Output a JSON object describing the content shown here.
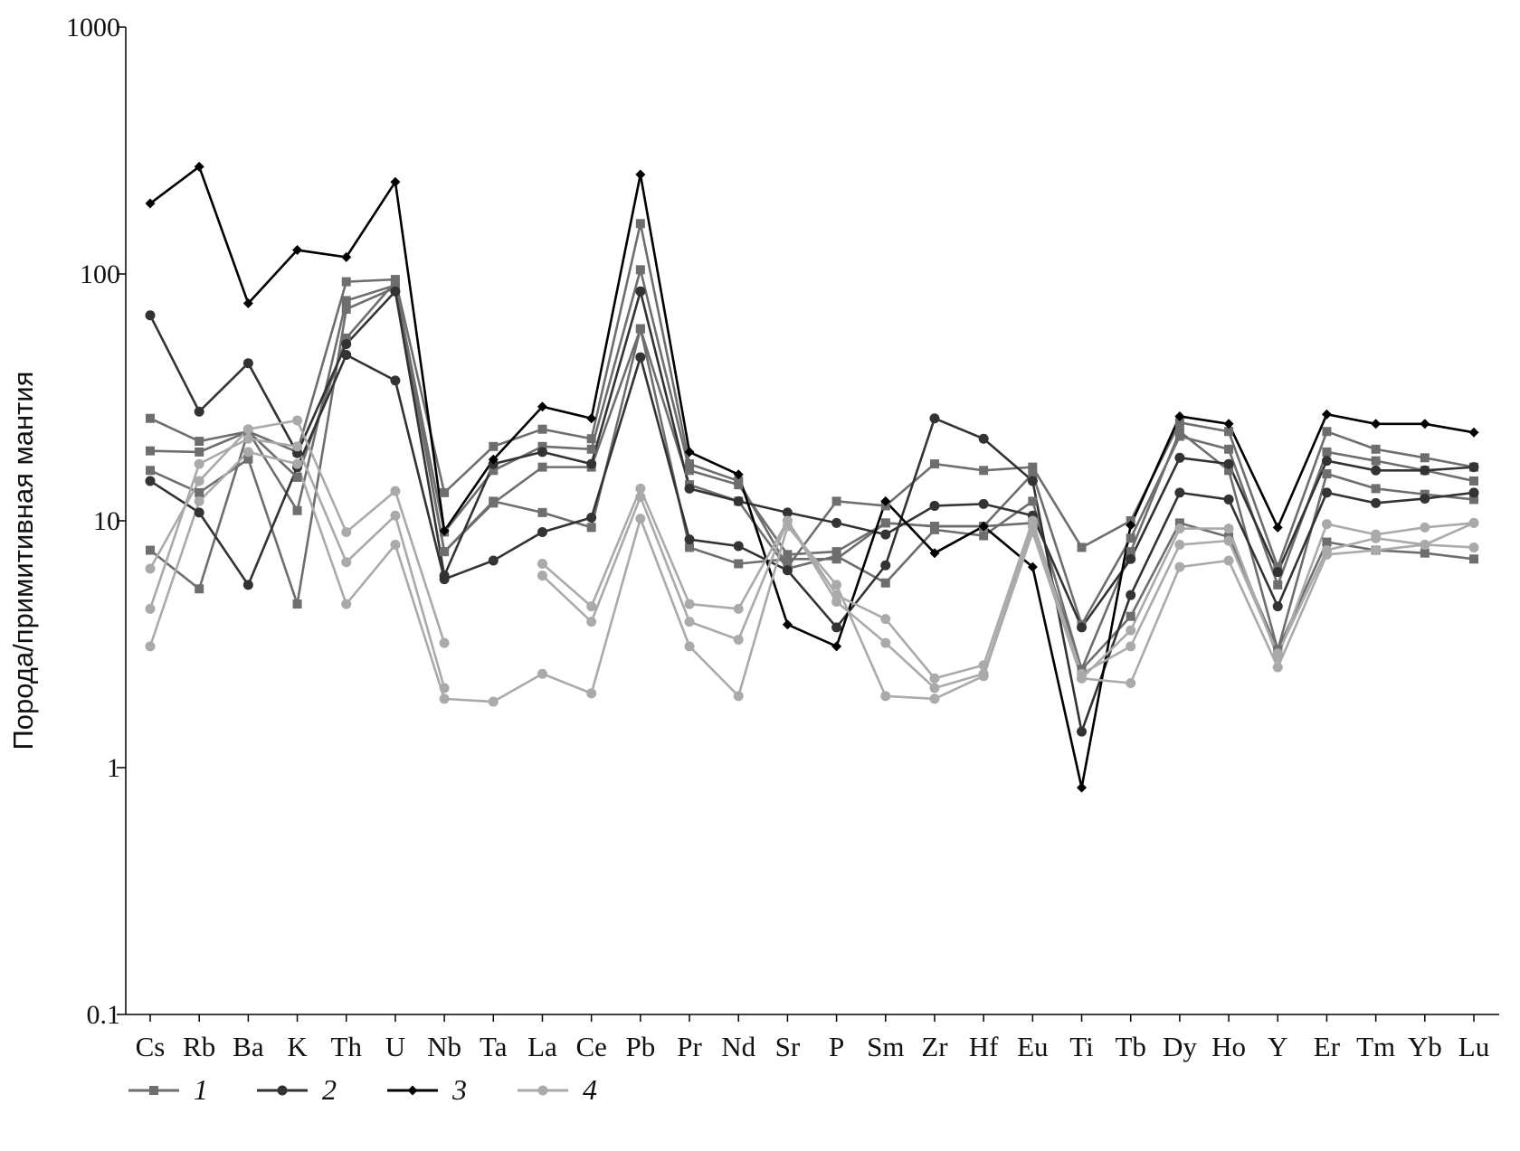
{
  "chart_data": {
    "type": "line",
    "y_label": "Порода/примитивная мантия",
    "log_scale": true,
    "categories": [
      "Cs",
      "Rb",
      "Ba",
      "K",
      "Th",
      "U",
      "Nb",
      "Ta",
      "La",
      "Ce",
      "Pb",
      "Pr",
      "Nd",
      "Sr",
      "P",
      "Sm",
      "Zr",
      "Hf",
      "Eu",
      "Ti",
      "Tb",
      "Dy",
      "Ho",
      "Y",
      "Er",
      "Tm",
      "Yb",
      "Lu"
    ],
    "ylim": [
      0.1,
      1000
    ],
    "yticks": [
      0.1,
      1,
      10,
      100,
      1000
    ],
    "series": [
      {
        "name": "1",
        "color": "#6e6e6e",
        "marker": "square",
        "lines": [
          [
            26,
            21,
            23,
            19,
            93,
            95,
            13,
            20,
            23.5,
            21.5,
            160,
            17,
            14.5,
            6.5,
            12,
            11.5,
            17,
            16,
            16.5,
            7.8,
            10,
            25,
            23,
            6.5,
            23,
            19.5,
            18,
            16.5
          ],
          [
            19.2,
            19,
            23,
            11,
            78,
            90,
            9,
            16,
            20,
            19.5,
            104,
            16,
            14,
            7.3,
            7.5,
            9.8,
            9.5,
            9.5,
            15.5,
            3.8,
            8.5,
            22,
            19.5,
            5.5,
            19,
            17.5,
            16,
            14.5
          ],
          [
            16,
            13,
            17.8,
            4.6,
            72,
            88,
            7.5,
            11.8,
            16.5,
            16.5,
            60,
            14,
            12,
            6.4,
            7.2,
            5.6,
            9.2,
            8.7,
            12,
            2.5,
            7.5,
            23,
            16,
            3,
            15.5,
            13.5,
            12.8,
            12.2
          ],
          [
            7.6,
            5.3,
            23,
            15,
            55,
            93,
            7.5,
            12,
            10.8,
            9.4,
            60,
            7.8,
            6.7,
            7,
            7,
            9.8,
            9.5,
            9.5,
            9.8,
            2.5,
            4.1,
            9.8,
            8.6,
            3,
            8.2,
            7.6,
            7.4,
            7
          ]
        ]
      },
      {
        "name": "2",
        "color": "#333333",
        "marker": "circle",
        "lines": [
          [
            68,
            27.7,
            43.5,
            18.8,
            52,
            85,
            6,
            17,
            19,
            17,
            85,
            13.5,
            12,
            10.8,
            9.8,
            8.8,
            11.5,
            11.7,
            10.5,
            3.7,
            7,
            18,
            17,
            6.2,
            17.5,
            16,
            16,
            16.5
          ],
          [
            14.5,
            10.8,
            5.5,
            16.5,
            47,
            37,
            5.8,
            6.9,
            9,
            10.3,
            46,
            8.4,
            7.9,
            6.3,
            3.7,
            6.6,
            26,
            21.5,
            14.5,
            1.4,
            5,
            13,
            12.2,
            4.5,
            13,
            11.8,
            12.3,
            13
          ]
        ]
      },
      {
        "name": "3",
        "color": "#000000",
        "marker": "diamond",
        "lines": [
          [
            193,
            272,
            76,
            125,
            117,
            236,
            9.1,
            17.7,
            29,
            26,
            253,
            19,
            15.4,
            3.8,
            3.1,
            12,
            7.4,
            9.5,
            6.5,
            0.83,
            9.6,
            26.5,
            24.7,
            9.4,
            27,
            24.7,
            24.7,
            22.8
          ]
        ]
      },
      {
        "name": "4",
        "color": "#aaaaaa",
        "marker": "circle",
        "lines": [
          [
            6.4,
            14.5,
            23.5,
            25.5,
            9,
            13.2,
            3.2,
            null,
            6.7,
            4.5,
            13.5,
            4.6,
            4.4,
            10,
            5,
            4,
            2.3,
            2.6,
            10,
            2.3,
            3.6,
            9.3,
            9.3,
            2.8,
            9.7,
            8.8,
            9.4,
            9.8
          ],
          [
            3.1,
            12,
            19,
            17,
            4.6,
            8,
            1.9,
            1.85,
            2.4,
            2,
            10.2,
            3.1,
            1.95,
            9.5,
            5.5,
            1.95,
            1.9,
            2.35,
            9,
            2.3,
            2.2,
            6.5,
            6.9,
            2.55,
            7.3,
            7.6,
            8,
            9.8
          ],
          [
            4.4,
            17,
            21.5,
            20,
            6.8,
            10.5,
            2.1,
            null,
            6,
            3.9,
            12.5,
            3.9,
            3.3,
            10,
            4.7,
            3.2,
            2.1,
            2.4,
            9.5,
            2.4,
            3.1,
            8,
            8.3,
            2.9,
            7.6,
            8.5,
            8,
            7.8
          ]
        ]
      }
    ]
  }
}
